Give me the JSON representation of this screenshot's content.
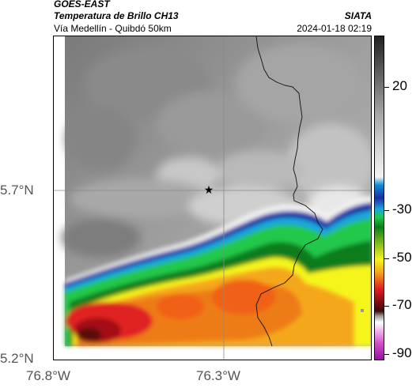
{
  "header": {
    "satellite": "GOES-EAST",
    "product": "Temperatura de Brillo CH13",
    "region": "Vía Medellín - Quibdó 50km",
    "source": "SIATA",
    "timestamp": "2024-01-18 02:19"
  },
  "map": {
    "lat_labels": [
      "5.7°N",
      "5.2°N"
    ],
    "lon_labels": [
      "76.8°W",
      "76.3°W"
    ],
    "marker_icon": "star-icon"
  },
  "colorbar": {
    "tick_labels": [
      "20",
      "-30",
      "-50",
      "-70",
      "-90"
    ],
    "colors": [
      "#222222",
      "#6e6e6e",
      "#d0d0d0",
      "#f2f2f2",
      "#1f2aa3",
      "#1aa6dd",
      "#24c84a",
      "#0d7d1c",
      "#f5f51e",
      "#f5a71a",
      "#e02020",
      "#6c0b10",
      "#999999",
      "#ffffff",
      "#d050c8",
      "#96129a"
    ]
  }
}
